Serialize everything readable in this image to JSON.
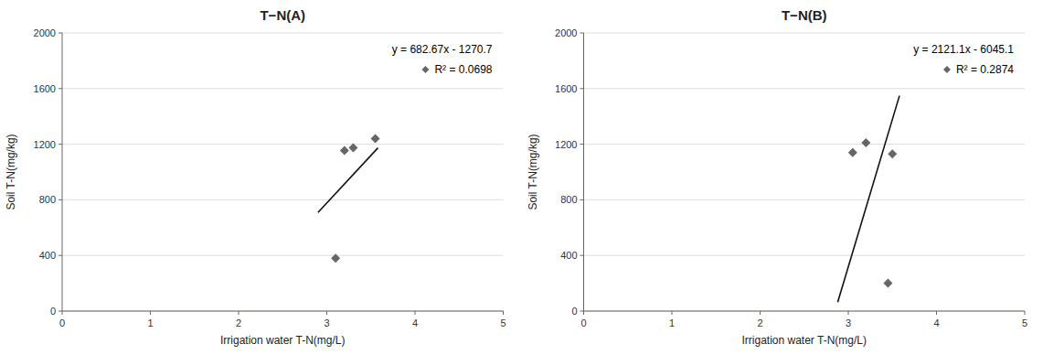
{
  "chart_data": [
    {
      "type": "scatter",
      "title": "T−N(A)",
      "x_label": "Irrigation water T-N(mg/L)",
      "y_label": "Soil T-N(mg/kg)",
      "annotations": [
        "y = 682.67x - 1270.7",
        "R² = 0.0698"
      ],
      "series": [
        {
          "type": "scatter",
          "marker": "diamond",
          "color": "#666666",
          "x": [
            3.1,
            3.2,
            3.3,
            3.55
          ],
          "values": [
            380,
            1155,
            1175,
            1240
          ]
        },
        {
          "type": "line",
          "color": "#111111",
          "x": [
            2.9,
            3.58
          ],
          "values": [
            709.043,
            1173.2586
          ]
        }
      ],
      "xlim": [
        0,
        5
      ],
      "ylim": [
        0,
        2000
      ],
      "xticks": [
        0,
        1,
        2,
        3,
        4,
        5
      ],
      "yticks": [
        0,
        400,
        800,
        1200,
        1600,
        2000
      ],
      "grid": true
    },
    {
      "type": "scatter",
      "title": "T−N(B)",
      "x_label": "Irrigation water T-N(mg/L)",
      "y_label": "Soil T-N(mg/kg)",
      "annotations": [
        "y = 2121.1x - 6045.1",
        "R² = 0.2874"
      ],
      "series": [
        {
          "type": "scatter",
          "marker": "diamond",
          "color": "#666666",
          "x": [
            3.05,
            3.2,
            3.45,
            3.5
          ],
          "values": [
            1140,
            1210,
            200,
            1130
          ]
        },
        {
          "type": "line",
          "color": "#111111",
          "x": [
            2.88,
            3.58
          ],
          "values": [
            63.668,
            1548.438
          ]
        }
      ],
      "xlim": [
        0,
        5
      ],
      "ylim": [
        0,
        2000
      ],
      "xticks": [
        0,
        1,
        2,
        3,
        4,
        5
      ],
      "yticks": [
        0,
        400,
        800,
        1200,
        1600,
        2000
      ],
      "grid": true
    }
  ]
}
